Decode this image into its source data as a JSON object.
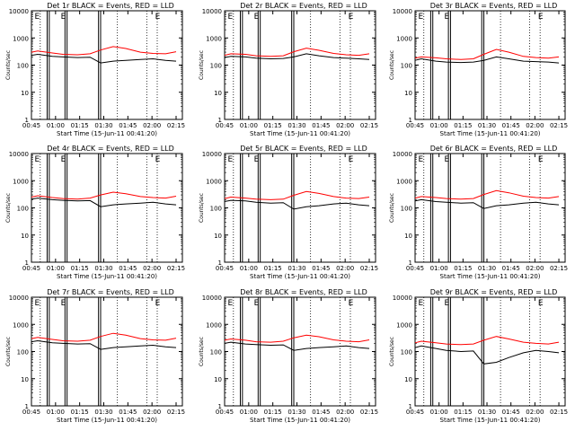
{
  "figure": {
    "xlabel": "Start Time (15-Jun-11 00:41:20)",
    "ylabel": "Counts/sec",
    "x_tick_labels": [
      "00:45",
      "01:00",
      "01:15",
      "01:30",
      "01:45",
      "02:00",
      "02:15"
    ],
    "y_tick_labels": [
      "1",
      "10",
      "100",
      "1000",
      "10000"
    ],
    "flag_letter": "E"
  },
  "chart_data": [
    {
      "type": "line",
      "title": "Det 1r BLACK = Events, RED = LLD",
      "x": [
        0.0,
        0.3,
        1.0,
        1.5,
        2.2,
        2.8,
        3.3,
        3.9,
        4.5,
        5.2,
        5.8,
        6.4,
        6.9
      ],
      "series": [
        {
          "name": "Events",
          "color": "#000000",
          "values": [
            230,
            250,
            210,
            200,
            190,
            195,
            120,
            140,
            150,
            160,
            170,
            150,
            140
          ]
        },
        {
          "name": "LLD",
          "color": "#ff0000",
          "values": [
            300,
            330,
            280,
            250,
            240,
            260,
            360,
            480,
            410,
            300,
            270,
            260,
            310
          ]
        }
      ],
      "ylim": [
        1,
        10000
      ],
      "yscale": "log"
    },
    {
      "type": "line",
      "title": "Det 2r BLACK = Events, RED = LLD",
      "x": [
        0.0,
        0.3,
        1.0,
        1.5,
        2.2,
        2.8,
        3.3,
        3.9,
        4.5,
        5.2,
        5.8,
        6.4,
        6.9
      ],
      "series": [
        {
          "name": "Events",
          "color": "#000000",
          "values": [
            190,
            210,
            200,
            180,
            170,
            175,
            200,
            260,
            220,
            190,
            180,
            170,
            160
          ]
        },
        {
          "name": "LLD",
          "color": "#ff0000",
          "values": [
            230,
            260,
            250,
            220,
            210,
            220,
            310,
            420,
            350,
            270,
            240,
            230,
            260
          ]
        }
      ],
      "ylim": [
        1,
        10000
      ],
      "yscale": "log"
    },
    {
      "type": "line",
      "title": "Det 3r BLACK = Events, RED = LLD",
      "x": [
        0.0,
        0.3,
        1.0,
        1.5,
        2.2,
        2.8,
        3.3,
        3.9,
        4.5,
        5.2,
        5.8,
        6.4,
        6.9
      ],
      "series": [
        {
          "name": "Events",
          "color": "#000000",
          "values": [
            150,
            170,
            140,
            130,
            125,
            130,
            150,
            200,
            170,
            140,
            135,
            130,
            120
          ]
        },
        {
          "name": "LLD",
          "color": "#ff0000",
          "values": [
            180,
            200,
            185,
            170,
            160,
            170,
            250,
            380,
            300,
            210,
            190,
            180,
            200
          ]
        }
      ],
      "ylim": [
        1,
        10000
      ],
      "yscale": "log"
    },
    {
      "type": "line",
      "title": "Det 4r BLACK = Events, RED = LLD",
      "x": [
        0.0,
        0.3,
        1.0,
        1.5,
        2.2,
        2.8,
        3.3,
        3.9,
        4.5,
        5.2,
        5.8,
        6.4,
        6.9
      ],
      "series": [
        {
          "name": "Events",
          "color": "#000000",
          "values": [
            210,
            230,
            200,
            190,
            180,
            185,
            110,
            130,
            140,
            150,
            160,
            140,
            130
          ]
        },
        {
          "name": "LLD",
          "color": "#ff0000",
          "values": [
            250,
            280,
            240,
            220,
            210,
            230,
            300,
            380,
            330,
            260,
            240,
            230,
            270
          ]
        }
      ],
      "ylim": [
        1,
        10000
      ],
      "yscale": "log"
    },
    {
      "type": "line",
      "title": "Det 5r BLACK = Events, RED = LLD",
      "x": [
        0.0,
        0.3,
        1.0,
        1.5,
        2.2,
        2.8,
        3.3,
        3.9,
        4.5,
        5.2,
        5.8,
        6.4,
        6.9
      ],
      "series": [
        {
          "name": "Events",
          "color": "#000000",
          "values": [
            170,
            190,
            180,
            160,
            150,
            155,
            90,
            110,
            120,
            140,
            150,
            130,
            120
          ]
        },
        {
          "name": "LLD",
          "color": "#ff0000",
          "values": [
            220,
            250,
            230,
            210,
            200,
            210,
            290,
            400,
            340,
            260,
            230,
            220,
            250
          ]
        }
      ],
      "ylim": [
        1,
        10000
      ],
      "yscale": "log"
    },
    {
      "type": "line",
      "title": "Det 6r BLACK = Events, RED = LLD",
      "x": [
        0.0,
        0.3,
        1.0,
        1.5,
        2.2,
        2.8,
        3.3,
        3.9,
        4.5,
        5.2,
        5.8,
        6.4,
        6.9
      ],
      "series": [
        {
          "name": "Events",
          "color": "#000000",
          "values": [
            180,
            200,
            170,
            160,
            150,
            155,
            95,
            120,
            130,
            150,
            160,
            140,
            130
          ]
        },
        {
          "name": "LLD",
          "color": "#ff0000",
          "values": [
            230,
            260,
            240,
            220,
            210,
            220,
            310,
            430,
            360,
            270,
            240,
            230,
            260
          ]
        }
      ],
      "ylim": [
        1,
        10000
      ],
      "yscale": "log"
    },
    {
      "type": "line",
      "title": "Det 7r BLACK = Events, RED = LLD",
      "x": [
        0.0,
        0.3,
        1.0,
        1.5,
        2.2,
        2.8,
        3.3,
        3.9,
        4.5,
        5.2,
        5.8,
        6.4,
        6.9
      ],
      "series": [
        {
          "name": "Events",
          "color": "#000000",
          "values": [
            230,
            250,
            210,
            200,
            190,
            195,
            120,
            140,
            150,
            160,
            170,
            150,
            140
          ]
        },
        {
          "name": "LLD",
          "color": "#ff0000",
          "values": [
            300,
            330,
            280,
            250,
            240,
            260,
            360,
            470,
            400,
            300,
            270,
            260,
            310
          ]
        }
      ],
      "ylim": [
        1,
        10000
      ],
      "yscale": "log"
    },
    {
      "type": "line",
      "title": "Det 8r BLACK = Events, RED = LLD",
      "x": [
        0.0,
        0.3,
        1.0,
        1.5,
        2.2,
        2.8,
        3.3,
        3.9,
        4.5,
        5.2,
        5.8,
        6.4,
        6.9
      ],
      "series": [
        {
          "name": "Events",
          "color": "#000000",
          "values": [
            200,
            220,
            190,
            180,
            170,
            175,
            110,
            130,
            140,
            150,
            160,
            140,
            130
          ]
        },
        {
          "name": "LLD",
          "color": "#ff0000",
          "values": [
            260,
            290,
            260,
            230,
            220,
            240,
            320,
            400,
            350,
            270,
            240,
            230,
            270
          ]
        }
      ],
      "ylim": [
        1,
        10000
      ],
      "yscale": "log"
    },
    {
      "type": "line",
      "title": "Det 9r BLACK = Events, RED = LLD",
      "x": [
        0.0,
        0.3,
        1.0,
        1.5,
        2.2,
        2.8,
        3.3,
        3.9,
        4.5,
        5.2,
        5.8,
        6.4,
        6.9
      ],
      "series": [
        {
          "name": "Events",
          "color": "#000000",
          "values": [
            140,
            160,
            130,
            110,
            100,
            105,
            35,
            40,
            60,
            90,
            110,
            100,
            90
          ]
        },
        {
          "name": "LLD",
          "color": "#ff0000",
          "values": [
            210,
            240,
            210,
            190,
            180,
            190,
            260,
            360,
            290,
            220,
            200,
            190,
            220
          ]
        }
      ],
      "ylim": [
        1,
        10000
      ],
      "yscale": "log"
    }
  ]
}
